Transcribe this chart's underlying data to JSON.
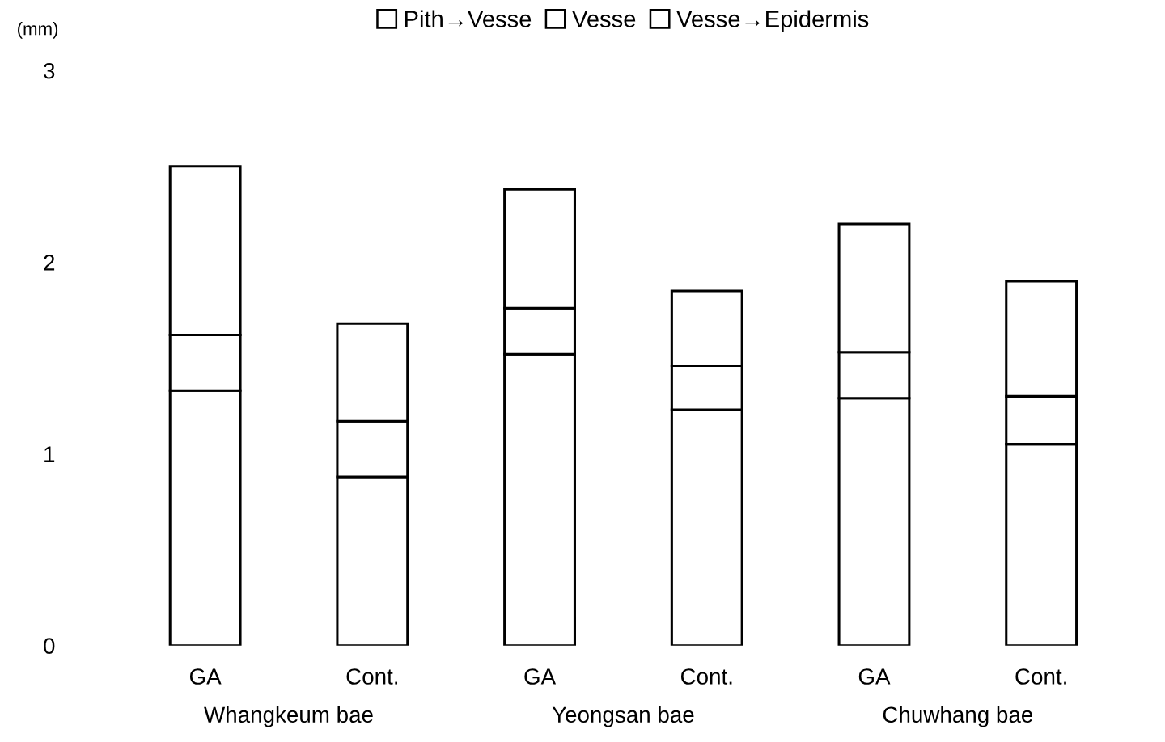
{
  "chart_data": {
    "type": "bar",
    "stacked": true,
    "ylabel": "(mm)",
    "categories": [
      "GA",
      "Cont.",
      "GA",
      "Cont.",
      "GA",
      "Cont."
    ],
    "series": [
      {
        "name": "Pith→Vesse",
        "color": "#ffffff",
        "values": [
          1.33,
          0.88,
          1.52,
          1.23,
          1.29,
          1.05
        ]
      },
      {
        "name": "Vesse",
        "color": "#ffffff",
        "values": [
          0.29,
          0.29,
          0.24,
          0.23,
          0.24,
          0.25
        ]
      },
      {
        "name": "Vesse→Epidermis",
        "color": "#ffffff",
        "values": [
          0.88,
          0.51,
          0.62,
          0.39,
          0.67,
          0.6
        ]
      }
    ],
    "annotations": [
      "Whangkeum bae",
      "Yeongsan bae",
      "Chuwhang bae"
    ],
    "ylim": [
      0,
      3
    ],
    "yticks": [
      0,
      1,
      2,
      3
    ],
    "grid": false,
    "legend": "top"
  }
}
